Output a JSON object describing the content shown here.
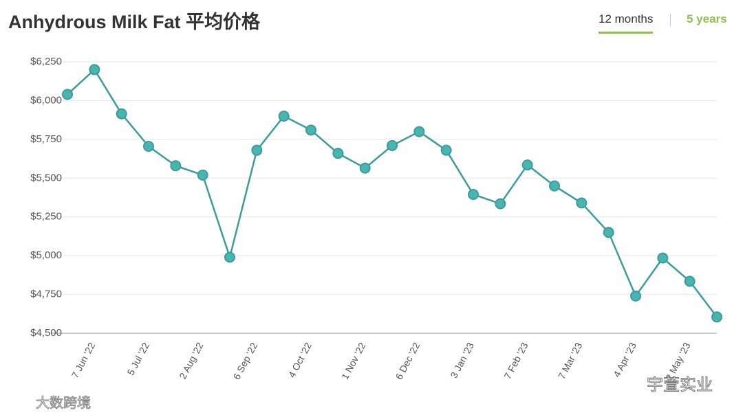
{
  "chart_data": {
    "type": "line",
    "title": "Anhydrous Milk Fat 平均价格",
    "tabs": [
      "12 months",
      "5 years"
    ],
    "active_tab": 0,
    "categories": [
      null,
      "7 Jun '22",
      null,
      "5 Jul '22",
      null,
      "2 Aug '22",
      null,
      "6 Sep '22",
      null,
      "4 Oct '22",
      null,
      "1 Nov '22",
      null,
      "6 Dec '22",
      null,
      "3 Jan '23",
      null,
      "7 Feb '23",
      null,
      "7 Mar '23",
      null,
      "4 Apr '23",
      null,
      "2 May '23",
      null
    ],
    "series": [
      {
        "name": "Anhydrous Milk Fat",
        "color": "#3a9c9b",
        "marker_color": "#48b5b0",
        "values": [
          6040,
          6200,
          5915,
          5705,
          5580,
          5520,
          4990,
          5680,
          5900,
          5810,
          5660,
          5565,
          5710,
          5800,
          5680,
          5395,
          5335,
          5585,
          5450,
          5340,
          5150,
          4740,
          4985,
          4835,
          4605
        ]
      }
    ],
    "ylim": [
      4500,
      6250
    ],
    "yticks": [
      {
        "value": 4500,
        "label": "$4,500"
      },
      {
        "value": 4750,
        "label": "$4,750"
      },
      {
        "value": 5000,
        "label": "$5,000"
      },
      {
        "value": 5250,
        "label": "$5,250"
      },
      {
        "value": 5500,
        "label": "$5,500"
      },
      {
        "value": 5750,
        "label": "$5,750"
      },
      {
        "value": 6000,
        "label": "$6,000"
      },
      {
        "value": 6250,
        "label": "$6,250"
      }
    ],
    "grid": true,
    "watermarks": [
      "大数跨境",
      "宇萱实业"
    ]
  }
}
